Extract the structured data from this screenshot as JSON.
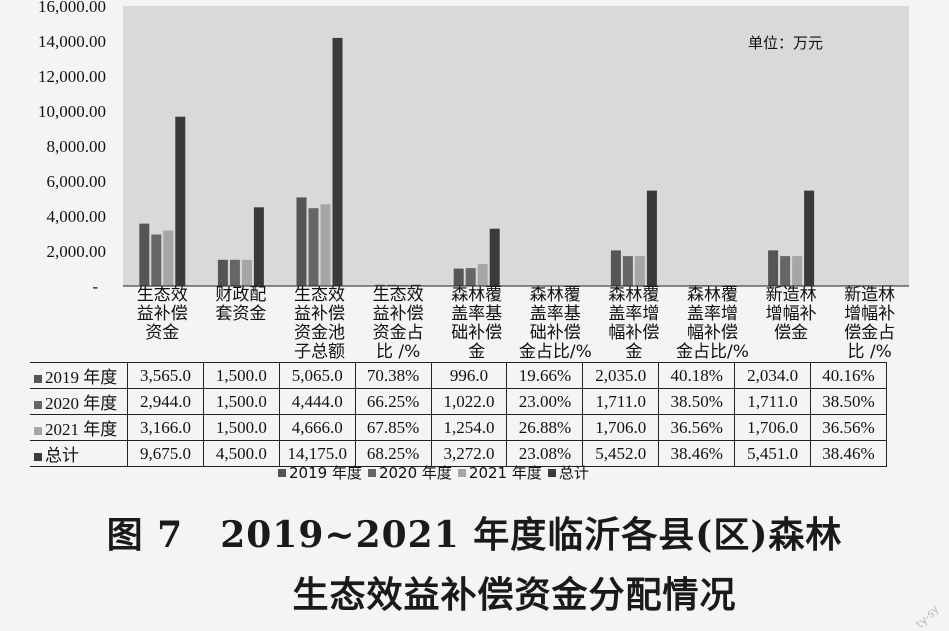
{
  "unit_label": "单位：万元",
  "figure_title_line1": "图 7　2019~2021 年度临沂各县(区)森林",
  "figure_title_line2": "生态效益补偿资金分配情况",
  "watermark": "ty-sy",
  "chart_data": {
    "type": "bar",
    "title": "图 7　2019~2021 年度临沂各县(区)森林生态效益补偿资金分配情况",
    "unit": "单位：万元",
    "ylim": [
      0,
      16000
    ],
    "yticks": [
      "16,000.00",
      "14,000.00",
      "12,000.00",
      "10,000.00",
      "8,000.00",
      "6,000.00",
      "4,000.00",
      "2,000.00",
      "-"
    ],
    "ytick_values": [
      16000,
      14000,
      12000,
      10000,
      8000,
      6000,
      4000,
      2000,
      0
    ],
    "categories": [
      [
        "生态效",
        "益补偿",
        "资金"
      ],
      [
        "财政配",
        "套资金"
      ],
      [
        "生态效",
        "益补偿",
        "资金池",
        "子总额"
      ],
      [
        "生态效",
        "益补偿",
        "资金占",
        "比 /%"
      ],
      [
        "森林覆",
        "盖率基",
        "础补偿",
        "金"
      ],
      [
        "森林覆",
        "盖率基",
        "础补偿",
        "金占比/%"
      ],
      [
        "森林覆",
        "盖率增",
        "幅补偿",
        "金"
      ],
      [
        "森林覆",
        "盖率增",
        "幅补偿",
        "金占比/%"
      ],
      [
        "新造林",
        "增幅补",
        "偿金"
      ],
      [
        "新造林",
        "增幅补",
        "偿金占",
        "比 /%"
      ]
    ],
    "series": [
      {
        "name": "2019 年度",
        "color": "#555555",
        "values": [
          3565.0,
          1500.0,
          5065.0,
          70.38,
          996.0,
          19.66,
          2035.0,
          40.18,
          2034.0,
          40.16
        ],
        "labels": [
          "3,565.0",
          "1,500.0",
          "5,065.0",
          "70.38%",
          "996.0",
          "19.66%",
          "2,035.0",
          "40.18%",
          "2,034.0",
          "40.16%"
        ]
      },
      {
        "name": "2020 年度",
        "color": "#666666",
        "values": [
          2944.0,
          1500.0,
          4444.0,
          66.25,
          1022.0,
          23.0,
          1711.0,
          38.5,
          1711.0,
          38.5
        ],
        "labels": [
          "2,944.0",
          "1,500.0",
          "4,444.0",
          "66.25%",
          "1,022.0",
          "23.00%",
          "1,711.0",
          "38.50%",
          "1,711.0",
          "38.50%"
        ]
      },
      {
        "name": "2021 年度",
        "color": "#a6a6a6",
        "values": [
          3166.0,
          1500.0,
          4666.0,
          67.85,
          1254.0,
          26.88,
          1706.0,
          36.56,
          1706.0,
          36.56
        ],
        "labels": [
          "3,166.0",
          "1,500.0",
          "4,666.0",
          "67.85%",
          "1,254.0",
          "26.88%",
          "1,706.0",
          "36.56%",
          "1,706.0",
          "36.56%"
        ]
      },
      {
        "name": "总计",
        "color": "#3a3a3a",
        "values": [
          9675.0,
          4500.0,
          14175.0,
          68.25,
          3272.0,
          23.08,
          5452.0,
          38.46,
          5451.0,
          38.46
        ],
        "labels": [
          "9,675.0",
          "4,500.0",
          "14,175.0",
          "68.25%",
          "3,272.0",
          "23.08%",
          "5,452.0",
          "38.46%",
          "5,451.0",
          "38.46%"
        ]
      }
    ],
    "table_row_labels": [
      "2019 年度",
      "2020 年度",
      "2021 年度",
      "总计"
    ],
    "legend": [
      "2019 年度",
      "2020 年度",
      "2021 年度",
      "总计"
    ],
    "legend_position": "bottom",
    "grid": false,
    "plot_background": "#d9d9d9"
  }
}
